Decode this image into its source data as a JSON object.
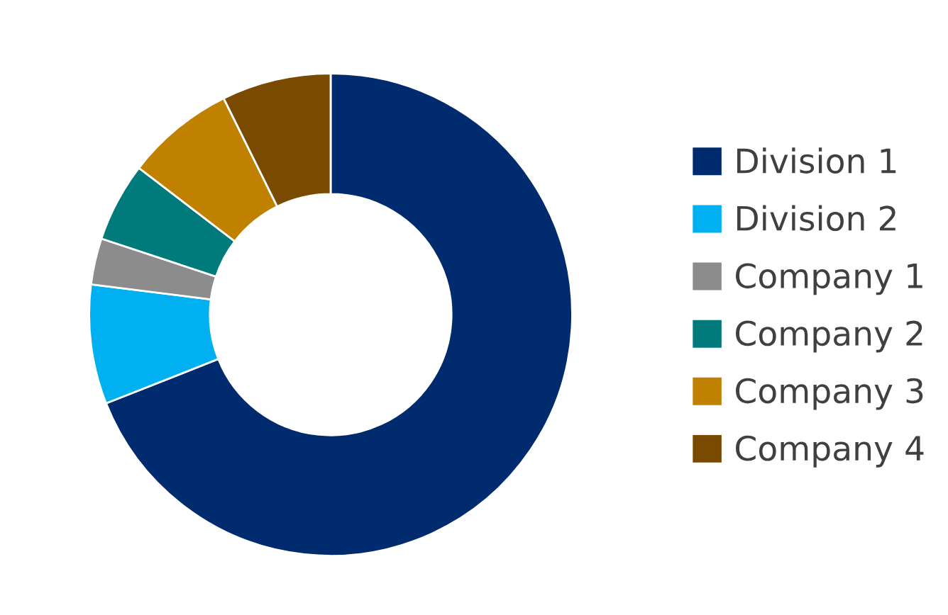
{
  "chart_data": {
    "type": "donut",
    "categories": [
      "Division 1",
      "Division 2",
      "Company 1",
      "Company 2",
      "Company 3",
      "Company 4"
    ],
    "values": [
      69,
      8,
      3.1,
      5.3,
      7.3,
      7.3
    ],
    "colors": [
      "#002b6e",
      "#00b0f0",
      "#8c8c8c",
      "#007a7a",
      "#c08000",
      "#7a4a00"
    ],
    "legend": "right"
  }
}
